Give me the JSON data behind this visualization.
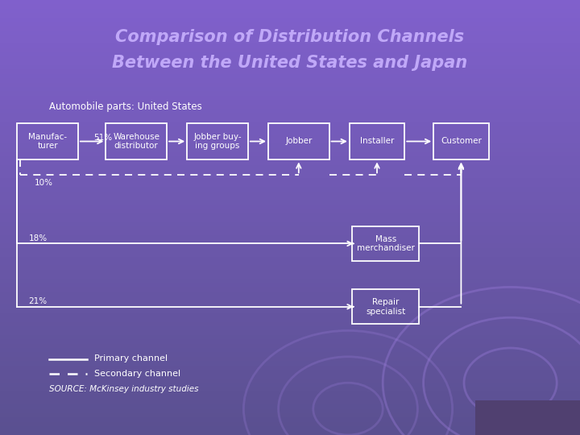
{
  "title_line1": "Comparison of Distribution Channels",
  "title_line2": "Between the United States and Japan",
  "subtitle": "Automobile parts: United States",
  "bg_top_color": "#6060a0",
  "bg_bottom_color": "#8060cc",
  "title_color": "#c0a8f8",
  "subtitle_color": "#ffffff",
  "text_color": "#ffffff",
  "source_text": "SOURCE: McKinsey industry studies",
  "legend_primary": "Primary channel",
  "legend_secondary": "Secondary channel",
  "pct_51": "51%",
  "pct_10": "10%",
  "pct_18": "18%",
  "pct_21": "21%",
  "figsize": [
    7.2,
    5.4
  ],
  "dpi": 100
}
